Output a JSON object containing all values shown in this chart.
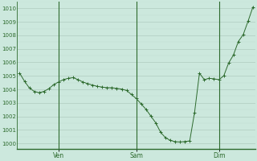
{
  "y_values": [
    1005.2,
    1004.6,
    1004.1,
    1003.85,
    1003.75,
    1003.85,
    1004.05,
    1004.35,
    1004.55,
    1004.72,
    1004.82,
    1004.87,
    1004.72,
    1004.55,
    1004.42,
    1004.32,
    1004.22,
    1004.17,
    1004.12,
    1004.12,
    1004.07,
    1004.02,
    1003.92,
    1003.62,
    1003.32,
    1002.92,
    1002.52,
    1002.02,
    1001.52,
    1000.82,
    1000.42,
    1000.22,
    1000.12,
    1000.1,
    1000.13,
    1000.18,
    1002.3,
    1005.2,
    1004.72,
    1004.82,
    1004.78,
    1004.72,
    1005.0,
    1005.95,
    1006.55,
    1007.55,
    1008.05,
    1009.05,
    1010.1
  ],
  "yticks": [
    1000,
    1001,
    1002,
    1003,
    1004,
    1005,
    1006,
    1007,
    1008,
    1009,
    1010
  ],
  "ylim": [
    999.6,
    1010.5
  ],
  "line_color": "#2d6a2d",
  "marker_color": "#2d6a2d",
  "bg_color": "#cce8dd",
  "grid_color_major": "#b0ccbf",
  "grid_color_minor": "#c0ddd0",
  "axis_color": "#2d6a2d",
  "tick_label_color": "#2d6a2d",
  "day_labels": [
    "Ven",
    "Sam",
    "Dim"
  ],
  "day_positions": [
    8,
    24,
    41
  ],
  "n_points": 49
}
